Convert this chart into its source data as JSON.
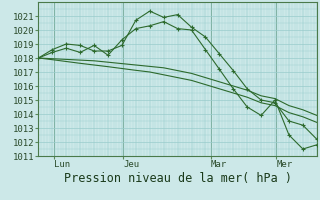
{
  "background_color": "#cce8e8",
  "grid_color": "#99cccc",
  "line_color": "#2d6a2d",
  "xlabel": "Pression niveau de la mer( hPa )",
  "ylim": [
    1011,
    1022
  ],
  "yticks": [
    1011,
    1012,
    1013,
    1014,
    1015,
    1016,
    1017,
    1018,
    1019,
    1020,
    1021
  ],
  "xtick_labels": [
    "Lun",
    "Jeu",
    "Mar",
    "Mer"
  ],
  "xtick_positions": [
    0.055,
    0.305,
    0.62,
    0.855
  ],
  "series": [
    [
      1018.0,
      1018.6,
      1019.0,
      1018.9,
      1018.5,
      1018.5,
      1018.9,
      1020.7,
      1021.35,
      1020.9,
      1021.1,
      1020.2,
      1019.5,
      1018.3,
      1017.1,
      1015.8,
      1015.0,
      1014.8,
      1013.5,
      1013.2,
      1012.2
    ],
    [
      1018.0,
      1018.4,
      1018.7,
      1018.4,
      1018.9,
      1018.2,
      1019.3,
      1020.1,
      1020.3,
      1020.6,
      1020.1,
      1020.0,
      1018.6,
      1017.2,
      1015.8,
      1014.5,
      1013.9,
      1015.0,
      1012.5,
      1011.5,
      1011.8
    ],
    [
      1018.0,
      1017.95,
      1017.9,
      1017.85,
      1017.8,
      1017.7,
      1017.6,
      1017.5,
      1017.4,
      1017.3,
      1017.1,
      1016.9,
      1016.6,
      1016.3,
      1016.0,
      1015.7,
      1015.3,
      1015.1,
      1014.6,
      1014.3,
      1013.9
    ],
    [
      1018.0,
      1017.88,
      1017.75,
      1017.62,
      1017.5,
      1017.38,
      1017.25,
      1017.12,
      1017.0,
      1016.8,
      1016.6,
      1016.4,
      1016.1,
      1015.8,
      1015.5,
      1015.2,
      1014.8,
      1014.6,
      1014.1,
      1013.8,
      1013.4
    ]
  ],
  "n_points": 21,
  "vlines_x": [
    0.055,
    0.305,
    0.62,
    0.855
  ],
  "tick_fontsize": 6.5,
  "xlabel_fontsize": 8.5
}
